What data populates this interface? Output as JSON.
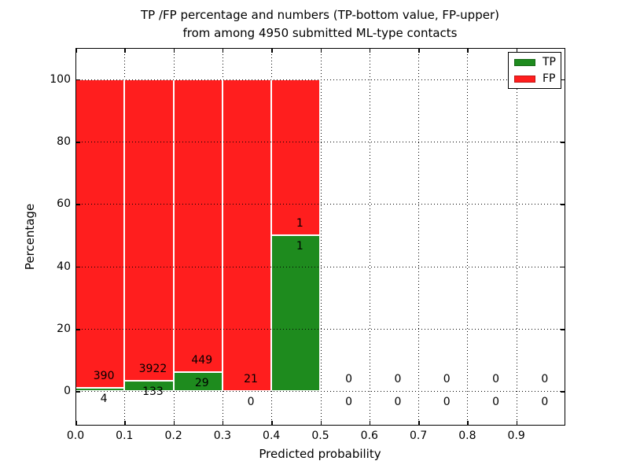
{
  "title": {
    "line1": "TP /FP percentage and numbers (TP-bottom value, FP-upper)",
    "line2": "from among 4950 submitted ML-type contacts"
  },
  "legend": {
    "items": [
      {
        "label": "TP",
        "color": "#1e8b1e"
      },
      {
        "label": "FP",
        "color": "#ff1e1e"
      }
    ],
    "position": "upper right"
  },
  "chart_data": {
    "type": "bar",
    "stacked": true,
    "normalized_to_percent": true,
    "title": "TP /FP percentage and numbers (TP-bottom value, FP-upper) from among 4950 submitted ML-type contacts",
    "xlabel": "Predicted probability",
    "ylabel": "Percentage",
    "total_contacts": 4950,
    "bin_width": 0.1,
    "bin_starts": [
      0.0,
      0.1,
      0.2,
      0.3,
      0.4,
      0.5,
      0.6,
      0.7,
      0.8,
      0.9
    ],
    "series": [
      {
        "name": "TP",
        "color": "#1e8b1e",
        "counts": [
          4,
          133,
          29,
          0,
          1,
          0,
          0,
          0,
          0,
          0
        ]
      },
      {
        "name": "FP",
        "color": "#ff1e1e",
        "counts": [
          390,
          3922,
          449,
          21,
          1,
          0,
          0,
          0,
          0,
          0
        ]
      }
    ],
    "xlim": [
      0.0,
      1.0
    ],
    "ylim": [
      -11,
      110
    ],
    "x_ticks": [
      0.0,
      0.1,
      0.2,
      0.3,
      0.4,
      0.5,
      0.6,
      0.7,
      0.8,
      0.9
    ],
    "x_tick_labels": [
      "0.0",
      "0.1",
      "0.2",
      "0.3",
      "0.4",
      "0.5",
      "0.6",
      "0.7",
      "0.8",
      "0.9"
    ],
    "y_ticks": [
      0,
      20,
      40,
      60,
      80,
      100
    ],
    "y_tick_labels": [
      "0",
      "20",
      "40",
      "60",
      "80",
      "100"
    ],
    "grid": "dotted black, both axes",
    "legend_position": "upper right"
  }
}
